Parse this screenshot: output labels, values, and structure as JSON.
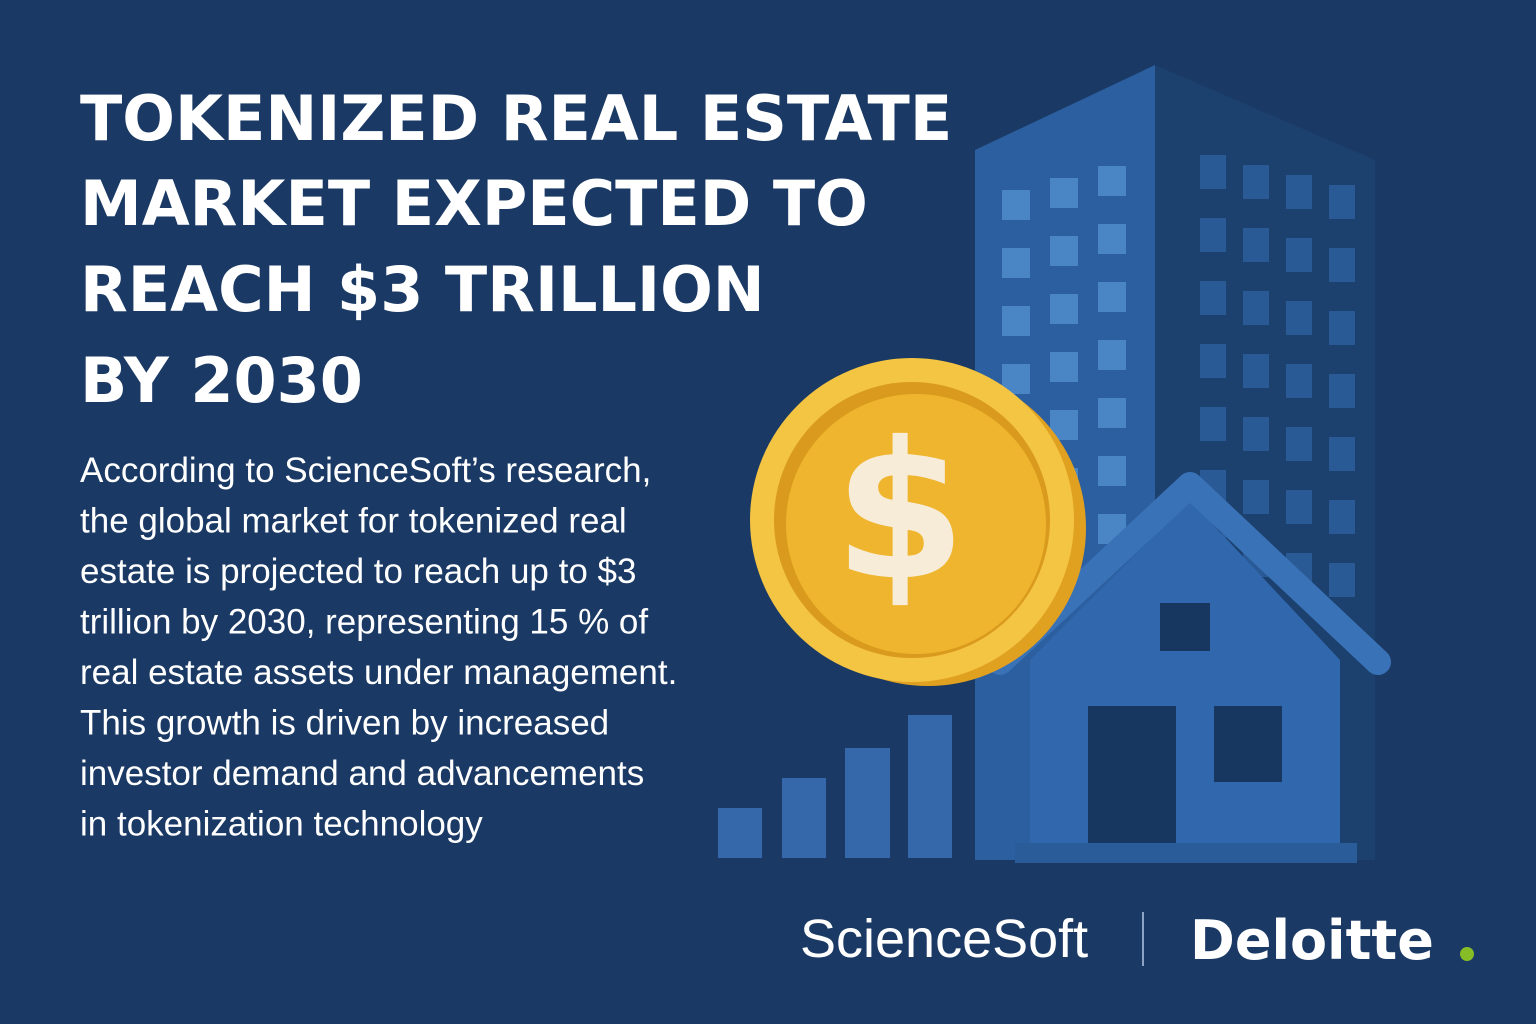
{
  "header": {
    "title_lines": [
      "TOKENIZED REAL ESTATE",
      "MARKET EXPECTED TO",
      "REACH $3 TRILLION",
      "BY 2030"
    ]
  },
  "body": {
    "lines": [
      "According to ScienceSoft’s research,",
      "the global market for tokenized real",
      "estate is projected to reach up to $3",
      "trillion by 2030, representing 15 %  of",
      "real estate assets under management.",
      "This growth is driven by increased",
      "investor demand and advancements",
      "in tokenization technology"
    ]
  },
  "coin": {
    "symbol": "$"
  },
  "logos": {
    "left": "ScienceSoft",
    "right": "Deloitte"
  }
}
